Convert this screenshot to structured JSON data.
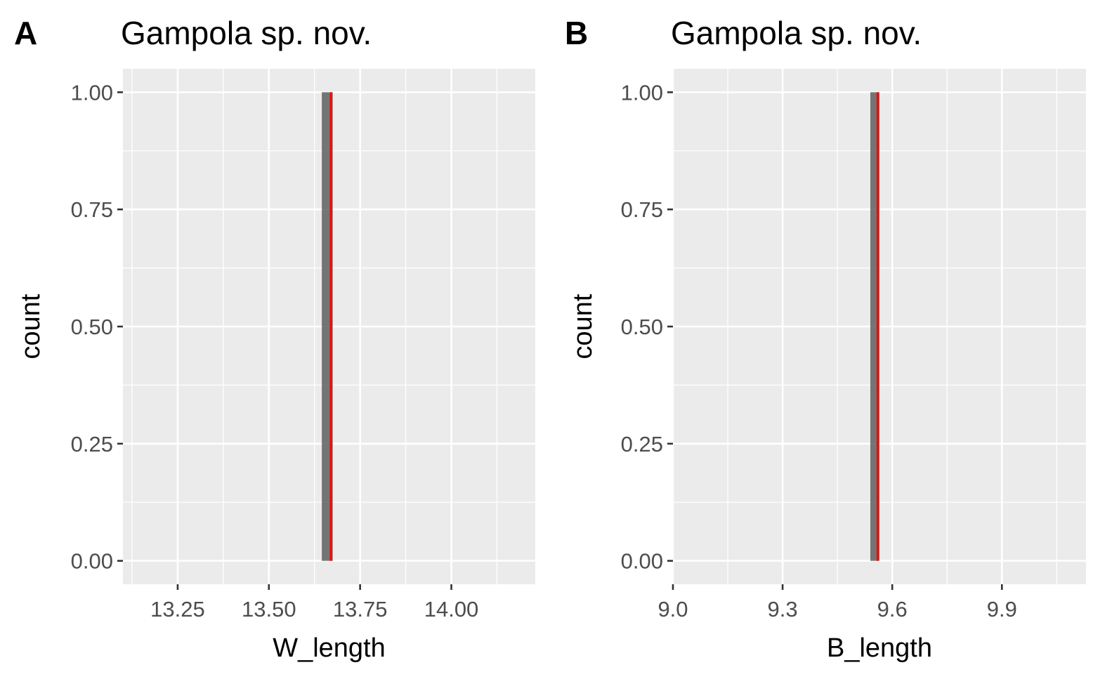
{
  "chart_data": [
    {
      "type": "bar",
      "panel_tag": "A",
      "title": "Gampola sp. nov.",
      "xlabel": "W_length",
      "ylabel": "count",
      "xlim": [
        13.1,
        14.23
      ],
      "ylim": [
        0,
        1
      ],
      "x_ticks": [
        13.25,
        13.5,
        13.75,
        14.0
      ],
      "x_tick_labels": [
        "13.25",
        "13.50",
        "13.75",
        "14.00"
      ],
      "y_ticks": [
        0,
        0.25,
        0.5,
        0.75,
        1.0
      ],
      "y_tick_labels": [
        "0.00",
        "0.25",
        "0.50",
        "0.75",
        "1.00"
      ],
      "bins": [
        {
          "x_start": 13.645,
          "x_end": 13.675,
          "count": 1
        }
      ],
      "reference_line": {
        "x": 13.67,
        "color": "#ff0000"
      },
      "bar_color": "#595959",
      "panel_background": "#ebebeb",
      "grid": true
    },
    {
      "type": "bar",
      "panel_tag": "B",
      "title": "Gampola sp. nov.",
      "xlabel": "B_length",
      "ylabel": "count",
      "xlim": [
        9.0,
        10.13
      ],
      "ylim": [
        0,
        1
      ],
      "x_ticks": [
        9.0,
        9.3,
        9.6,
        9.9
      ],
      "x_tick_labels": [
        "9.0",
        "9.3",
        "9.6",
        "9.9"
      ],
      "y_ticks": [
        0,
        0.25,
        0.5,
        0.75,
        1.0
      ],
      "y_tick_labels": [
        "0.00",
        "0.25",
        "0.50",
        "0.75",
        "1.00"
      ],
      "bins": [
        {
          "x_start": 9.54,
          "x_end": 9.565,
          "count": 1
        }
      ],
      "reference_line": {
        "x": 9.56,
        "color": "#ff0000"
      },
      "bar_color": "#595959",
      "panel_background": "#ebebeb",
      "grid": true
    }
  ]
}
